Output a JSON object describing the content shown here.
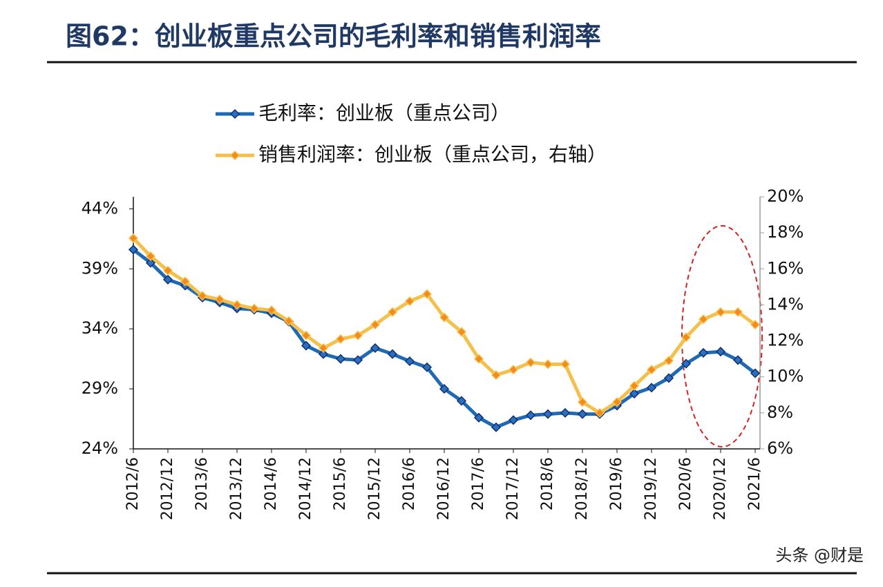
{
  "chart_data": {
    "type": "line",
    "title": "图62：创业板重点公司的毛利率和销售利润率",
    "categories": [
      "2012/6",
      null,
      "2012/12",
      null,
      "2013/6",
      null,
      "2013/12",
      null,
      "2014/6",
      null,
      "2014/12",
      null,
      "2015/6",
      null,
      "2015/12",
      null,
      "2016/6",
      null,
      "2016/12",
      null,
      "2017/6",
      null,
      "2017/12",
      null,
      "2018/6",
      null,
      "2018/12",
      null,
      "2019/6",
      null,
      "2019/12",
      null,
      "2020/6",
      null,
      "2020/12",
      null,
      "2021/6"
    ],
    "series": [
      {
        "name": "毛利率：创业板（重点公司）",
        "color": "#1f6ab4",
        "axis": "y",
        "values": [
          40.6,
          39.5,
          38.1,
          37.6,
          36.6,
          36.2,
          35.7,
          35.6,
          35.3,
          34.6,
          32.6,
          31.9,
          31.5,
          31.4,
          32.4,
          31.9,
          31.3,
          30.8,
          29.0,
          28.0,
          26.6,
          25.8,
          26.4,
          26.8,
          26.9,
          27.0,
          26.9,
          26.9,
          27.6,
          28.6,
          29.1,
          29.9,
          31.1,
          32.0,
          32.1,
          31.4,
          30.3
        ]
      },
      {
        "name": "销售利润率：创业板（重点公司，右轴）",
        "color": "#f5c04a",
        "axis": "y2",
        "values": [
          17.7,
          16.7,
          15.9,
          15.3,
          14.5,
          14.3,
          14.0,
          13.8,
          13.7,
          13.1,
          12.3,
          11.6,
          12.1,
          12.3,
          12.9,
          13.6,
          14.2,
          14.6,
          13.3,
          12.5,
          11.0,
          10.1,
          10.4,
          10.8,
          10.7,
          10.7,
          8.6,
          8.0,
          8.6,
          9.5,
          10.4,
          10.9,
          12.2,
          13.2,
          13.6,
          13.6,
          12.9
        ]
      }
    ],
    "ylim": [
      24,
      45
    ],
    "yticks": [
      {
        "value": 24,
        "label": "24%"
      },
      {
        "value": 29,
        "label": "29%"
      },
      {
        "value": 34,
        "label": "34%"
      },
      {
        "value": 39,
        "label": "39%"
      },
      {
        "value": 44,
        "label": "44%"
      }
    ],
    "y2lim": [
      6,
      20
    ],
    "y2ticks": [
      {
        "value": 6,
        "label": "6%"
      },
      {
        "value": 8,
        "label": "8%"
      },
      {
        "value": 10,
        "label": "10%"
      },
      {
        "value": 12,
        "label": "12%"
      },
      {
        "value": 14,
        "label": "14%"
      },
      {
        "value": 16,
        "label": "16%"
      },
      {
        "value": 18,
        "label": "18%"
      },
      {
        "value": 20,
        "label": "20%"
      }
    ],
    "grid": false,
    "watermark": "头条 @财是"
  }
}
